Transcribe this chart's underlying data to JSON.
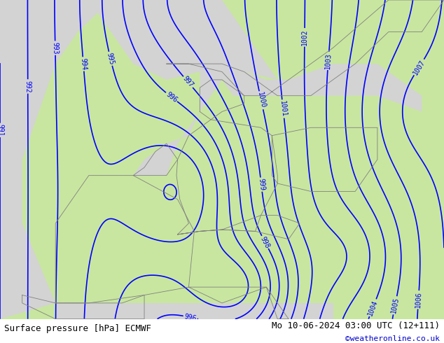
{
  "title_left": "Surface pressure [hPa] ECMWF",
  "title_right": "Mo 10-06-2024 03:00 UTC (12+111)",
  "credit": "©weatheronline.co.uk",
  "credit_color": "#0000cc",
  "bg_color": "#d3d3d3",
  "land_color": "#c8e6a0",
  "sea_color": "#d3d3d3",
  "contour_color": "#0000ff",
  "border_color": "#808080",
  "label_color": "#0000ff",
  "bottom_bar_color": "#c8e6a0",
  "figsize": [
    6.34,
    4.9
  ],
  "dpi": 100,
  "title_fontsize": 9,
  "credit_fontsize": 8,
  "contour_linewidth": 1.2,
  "label_fontsize": 7
}
